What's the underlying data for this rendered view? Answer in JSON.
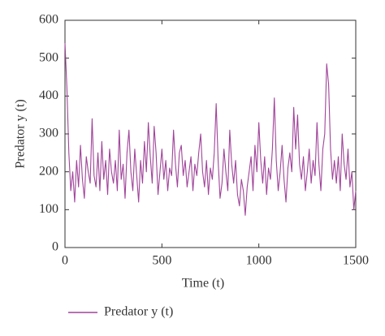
{
  "chart_data": {
    "type": "line",
    "xlabel": "Time (t)",
    "ylabel": "Predator y (t)",
    "xlim": [
      0,
      1500
    ],
    "xticks": [
      0,
      500,
      1000,
      1500
    ],
    "ylim": [
      0,
      600
    ],
    "yticks": [
      0,
      100,
      200,
      300,
      400,
      500,
      600
    ],
    "legend": "bottom",
    "grid": false,
    "x": [
      0,
      10,
      20,
      30,
      40,
      50,
      60,
      70,
      80,
      90,
      100,
      110,
      120,
      130,
      140,
      150,
      160,
      170,
      180,
      190,
      200,
      210,
      220,
      230,
      240,
      250,
      260,
      270,
      280,
      290,
      300,
      310,
      320,
      330,
      340,
      350,
      360,
      370,
      380,
      390,
      400,
      410,
      420,
      430,
      440,
      450,
      460,
      470,
      480,
      490,
      500,
      510,
      520,
      530,
      540,
      550,
      560,
      570,
      580,
      590,
      600,
      610,
      620,
      630,
      640,
      650,
      660,
      670,
      680,
      690,
      700,
      710,
      720,
      730,
      740,
      750,
      760,
      770,
      780,
      790,
      800,
      810,
      820,
      830,
      840,
      850,
      860,
      870,
      880,
      890,
      900,
      910,
      920,
      930,
      940,
      950,
      960,
      970,
      980,
      990,
      1000,
      1010,
      1020,
      1030,
      1040,
      1050,
      1060,
      1070,
      1080,
      1090,
      1100,
      1110,
      1120,
      1130,
      1140,
      1150,
      1160,
      1170,
      1180,
      1190,
      1200,
      1210,
      1220,
      1230,
      1240,
      1250,
      1260,
      1270,
      1280,
      1290,
      1300,
      1310,
      1320,
      1330,
      1340,
      1350,
      1360,
      1370,
      1380,
      1390,
      1400,
      1410,
      1420,
      1430,
      1440,
      1450,
      1460,
      1470,
      1480,
      1490,
      1500
    ],
    "series": [
      {
        "name": "Predator y (t)",
        "color": "#a0449a",
        "values": [
          540,
          420,
          250,
          150,
          200,
          120,
          230,
          160,
          270,
          180,
          130,
          240,
          200,
          170,
          340,
          190,
          160,
          250,
          150,
          280,
          180,
          230,
          140,
          260,
          200,
          170,
          230,
          150,
          310,
          180,
          220,
          130,
          250,
          310,
          200,
          150,
          260,
          190,
          120,
          230,
          170,
          280,
          200,
          330,
          240,
          170,
          320,
          250,
          140,
          200,
          260,
          180,
          230,
          150,
          210,
          190,
          310,
          220,
          160,
          250,
          270,
          190,
          230,
          160,
          200,
          240,
          150,
          220,
          190,
          250,
          300,
          200,
          160,
          230,
          140,
          210,
          180,
          250,
          380,
          230,
          130,
          170,
          260,
          200,
          150,
          310,
          220,
          170,
          230,
          140,
          110,
          180,
          150,
          85,
          160,
          200,
          240,
          150,
          270,
          200,
          330,
          230,
          170,
          240,
          140,
          210,
          180,
          260,
          395,
          230,
          150,
          200,
          270,
          180,
          120,
          210,
          250,
          200,
          370,
          260,
          350,
          220,
          180,
          240,
          150,
          200,
          260,
          170,
          230,
          190,
          330,
          220,
          150,
          260,
          300,
          485,
          430,
          260,
          180,
          230,
          170,
          240,
          150,
          300,
          220,
          180,
          260,
          160,
          200,
          100,
          150
        ]
      }
    ]
  }
}
